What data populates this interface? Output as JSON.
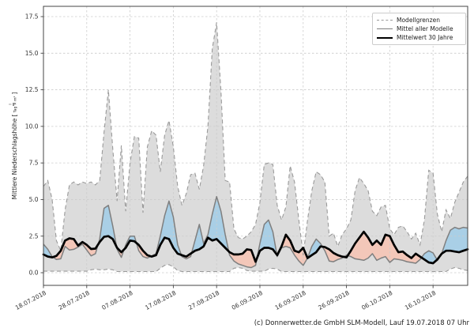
{
  "figure": {
    "ylabel_prefix": "Mittlere Niederschlagshöhe [",
    "ylabel_unit_numerator": "l",
    "ylabel_unit_denominator": "Tag × m²",
    "ylabel_close": "]",
    "caption": "(c) Donnerwetter.de GmbH SLM-Modell, Lauf 19.07.2018 07 Uhr"
  },
  "legend": {
    "position": "upper right",
    "items": [
      {
        "label": "Modellgrenzen",
        "style": "dashed",
        "color": "#9a9a9a"
      },
      {
        "label": "Mittel aller Modelle",
        "style": "solid",
        "color": "#7f7f7f"
      },
      {
        "label": "Mittelwert 30 Jahre",
        "style": "solid-bold",
        "color": "#000000"
      }
    ]
  },
  "chart_data": {
    "type": "area",
    "title": "",
    "xlabel": "",
    "ylabel": "Mittlere Niederschlagshöhe [l/(Tag × m²)]",
    "grid": true,
    "legend_position": "upper right",
    "x_unit": "Tage ab 18.07.2018 (1 Wert pro Tag)",
    "x_range_days": [
      0,
      98
    ],
    "ylim": [
      -0.86,
      18.2
    ],
    "x_ticks": {
      "days": [
        0,
        10,
        20,
        30,
        40,
        50,
        60,
        70,
        80,
        90
      ],
      "labels": [
        "18.07.2018",
        "28.07.2018",
        "07.08.2018",
        "17.08.2018",
        "27.08.2018",
        "06.09.2018",
        "16.09.2018",
        "26.09.2018",
        "06.10.2018",
        "16.10.2018"
      ]
    },
    "y_ticks": {
      "values": [
        0,
        2.5,
        5,
        7.5,
        10,
        12.5,
        15,
        17.5
      ],
      "labels": [
        "0.0",
        "2.5",
        "5.0",
        "7.5",
        "10.0",
        "12.5",
        "15.0",
        "17.5"
      ]
    },
    "series": [
      {
        "name": "Modellgrenzen (obere Grenze)",
        "role": "band_upper",
        "values": [
          5.9,
          6.3,
          5.0,
          2.2,
          1.5,
          4.3,
          6.0,
          6.2,
          6.0,
          6.2,
          6.1,
          6.2,
          6.0,
          6.3,
          9.6,
          12.5,
          8.5,
          4.9,
          8.7,
          4.2,
          7.5,
          9.3,
          9.2,
          4.1,
          8.6,
          9.7,
          9.4,
          6.9,
          9.4,
          10.4,
          8.6,
          5.9,
          4.6,
          5.4,
          6.7,
          6.8,
          5.7,
          7.3,
          10.0,
          15.3,
          17.1,
          12.4,
          6.3,
          6.2,
          3.0,
          2.4,
          2.3,
          2.5,
          2.8,
          3.3,
          4.8,
          7.4,
          7.5,
          7.4,
          4.6,
          3.6,
          4.5,
          7.3,
          6.2,
          3.6,
          1.2,
          3.6,
          5.6,
          6.9,
          6.7,
          6.2,
          2.5,
          2.7,
          1.8,
          2.6,
          3.0,
          3.6,
          5.6,
          6.5,
          6.1,
          5.6,
          4.2,
          3.9,
          4.5,
          4.6,
          3.0,
          2.6,
          3.1,
          3.2,
          2.8,
          2.3,
          2.7,
          1.9,
          3.6,
          7.0,
          6.8,
          4.0,
          2.8,
          4.3,
          3.7,
          4.8,
          5.5,
          6.2,
          6.6
        ]
      },
      {
        "name": "Modellgrenzen (untere Grenze)",
        "role": "band_lower",
        "values": [
          0.1,
          0.1,
          0.1,
          0.1,
          0.1,
          0.1,
          0.1,
          0.1,
          0.1,
          0.1,
          0.1,
          0.2,
          0.25,
          0.2,
          0.2,
          0.25,
          0.2,
          0.08,
          0.08,
          0.08,
          0.08,
          0.08,
          0.08,
          0.08,
          0.08,
          0.08,
          0.08,
          0.3,
          0.5,
          0.55,
          0.4,
          0.15,
          0.08,
          0.08,
          0.08,
          0.08,
          0.08,
          0.08,
          0.08,
          0.08,
          0.08,
          0.08,
          0.08,
          0.08,
          0.3,
          0.35,
          0.3,
          0.15,
          0.1,
          0.1,
          0.1,
          0.1,
          0.25,
          0.3,
          0.25,
          0.08,
          0.08,
          0.08,
          0.08,
          0.08,
          0.08,
          0.08,
          0.08,
          0.08,
          0.08,
          0.08,
          0.08,
          0.08,
          0.08,
          0.08,
          0.08,
          0.08,
          0.08,
          0.08,
          0.08,
          0.08,
          0.08,
          0.08,
          0.08,
          0.08,
          0.08,
          0.08,
          0.08,
          0.08,
          0.08,
          0.08,
          0.08,
          0.08,
          0.08,
          0.08,
          0.08,
          0.08,
          0.08,
          0.08,
          0.25,
          0.35,
          0.3,
          0.2,
          0.15
        ]
      },
      {
        "name": "Mittel aller Modelle",
        "role": "line",
        "values": [
          1.95,
          1.6,
          1.1,
          0.9,
          0.95,
          1.8,
          1.55,
          1.6,
          1.75,
          1.95,
          1.55,
          1.15,
          1.3,
          2.3,
          4.4,
          4.6,
          3.2,
          1.6,
          1.05,
          1.9,
          2.5,
          2.5,
          1.5,
          1.1,
          1.0,
          1.15,
          1.3,
          2.5,
          3.9,
          4.9,
          3.8,
          1.9,
          1.1,
          0.95,
          1.1,
          2.2,
          3.3,
          2.0,
          2.6,
          4.0,
          5.2,
          4.2,
          2.6,
          1.2,
          0.8,
          0.6,
          0.5,
          0.4,
          0.35,
          0.5,
          2.0,
          3.3,
          3.6,
          2.8,
          1.1,
          1.7,
          1.8,
          1.7,
          1.2,
          0.8,
          0.5,
          1.0,
          1.8,
          2.3,
          2.0,
          1.5,
          0.8,
          0.75,
          0.9,
          1.0,
          1.2,
          1.1,
          0.95,
          0.9,
          0.85,
          1.0,
          1.3,
          0.85,
          1.0,
          1.1,
          0.7,
          0.95,
          0.9,
          0.85,
          0.75,
          0.7,
          0.65,
          0.9,
          1.3,
          1.5,
          1.35,
          0.85,
          1.3,
          2.2,
          2.9,
          3.1,
          3.0,
          3.1,
          3.05
        ]
      },
      {
        "name": "Mittelwert 30 Jahre",
        "role": "line_bold",
        "values": [
          1.25,
          1.1,
          1.05,
          1.15,
          1.5,
          2.2,
          2.35,
          2.3,
          1.85,
          2.1,
          1.9,
          1.62,
          1.65,
          2.1,
          2.45,
          2.5,
          2.3,
          1.7,
          1.4,
          1.7,
          2.2,
          2.15,
          1.9,
          1.5,
          1.2,
          1.1,
          1.2,
          1.9,
          2.4,
          2.3,
          1.7,
          1.3,
          1.2,
          1.1,
          1.3,
          1.5,
          1.6,
          1.8,
          2.4,
          2.2,
          2.3,
          2.0,
          1.7,
          1.4,
          1.25,
          1.25,
          1.3,
          1.6,
          1.55,
          0.75,
          1.5,
          1.7,
          1.7,
          1.6,
          1.2,
          1.8,
          2.6,
          2.2,
          1.5,
          1.4,
          1.7,
          1.0,
          1.2,
          1.4,
          1.8,
          1.75,
          1.6,
          1.35,
          1.2,
          1.1,
          1.05,
          1.5,
          2.0,
          2.4,
          2.8,
          2.4,
          1.9,
          2.2,
          1.9,
          2.6,
          2.5,
          1.9,
          1.4,
          1.45,
          1.2,
          1.0,
          1.3,
          1.1,
          0.9,
          0.7,
          0.65,
          0.9,
          1.3,
          1.5,
          1.5,
          1.45,
          1.4,
          1.5,
          1.6
        ]
      }
    ],
    "anomaly_fill": {
      "between": [
        "Mittel aller Modelle",
        "Mittelwert 30 Jahre"
      ],
      "above_color": "#a9cfe6",
      "below_color": "#f3c7b9"
    },
    "colors": {
      "envelope_fill": "#dcdcdc",
      "envelope_edge": "#9a9a9a",
      "mean_line": "#7f7f7f",
      "mean30_line": "#000000",
      "grid": "#cccccc",
      "frame": "#444444"
    }
  }
}
